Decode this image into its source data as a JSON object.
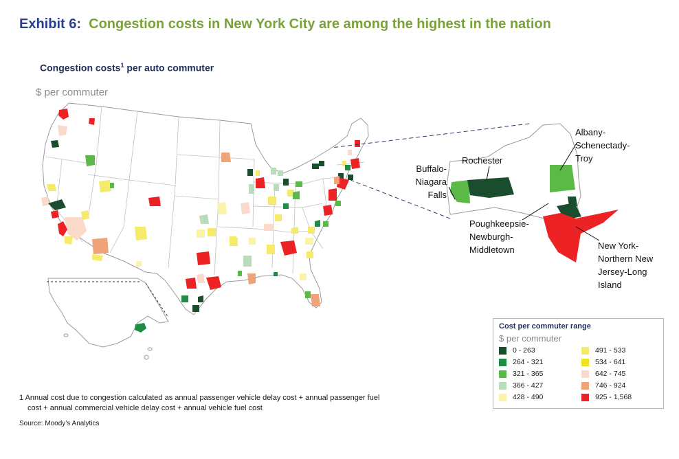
{
  "header": {
    "exhibit_label": "Exhibit 6:",
    "title": "Congestion costs in New York City are among the highest in the nation"
  },
  "subtitle": {
    "text": "Congestion costs",
    "superscript": "1",
    "text_after": " per auto commuter"
  },
  "unit": "$ per commuter",
  "inset_labels": {
    "albany": [
      "Albany-",
      "Schenectady-",
      "Troy"
    ],
    "rochester": [
      "Rochester"
    ],
    "buffalo": [
      "Buffalo-",
      "Niagara",
      "Falls"
    ],
    "poughkeepsie": [
      "Poughkeepsie-",
      "Newburgh-",
      "Middletown"
    ],
    "nyc": [
      "New York-",
      "Northern New",
      "Jersey-Long",
      "Island"
    ]
  },
  "legend": {
    "title": "Cost per commuter range",
    "unit": "$ per commuter",
    "items": [
      {
        "range": "0 - 263",
        "color": "#1a4d2e"
      },
      {
        "range": "264 - 321",
        "color": "#1e8c45"
      },
      {
        "range": "321 - 365",
        "color": "#5ab947"
      },
      {
        "range": "366 - 427",
        "color": "#b9dcbc"
      },
      {
        "range": "428 - 490",
        "color": "#fbf3a8"
      },
      {
        "range": "491 - 533",
        "color": "#f5ea6a"
      },
      {
        "range": "534 - 641",
        "color": "#ede31f"
      },
      {
        "range": "642 - 745",
        "color": "#fbd9cb"
      },
      {
        "range": "746 - 924",
        "color": "#f0a278"
      },
      {
        "range": "925 - 1,568",
        "color": "#ed2224"
      }
    ]
  },
  "footnote": {
    "line1": "1 Annual cost due to congestion calculated as annual passenger vehicle delay cost + annual passenger fuel",
    "line2": "cost + annual commercial vehicle delay cost + annual vehicle fuel cost"
  },
  "source": "Source:  Moody’s Analytics"
}
